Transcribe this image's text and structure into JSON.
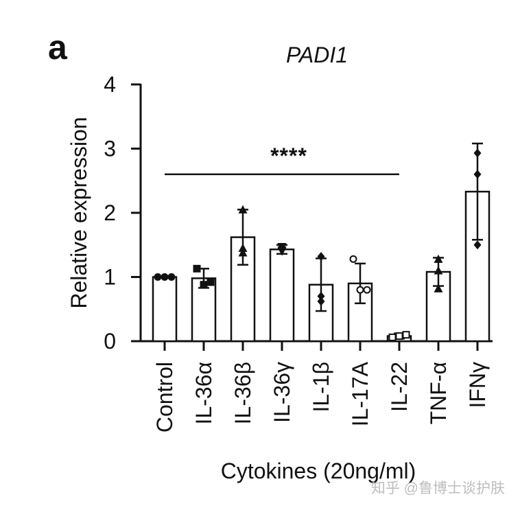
{
  "panel_label": "a",
  "watermark": "知乎 @鲁博士谈护肤",
  "colors": {
    "ink": "#111111",
    "bar_fill": "#ffffff",
    "watermark": "#bdbdbd"
  },
  "chart_data": {
    "type": "bar",
    "title": "PADI1",
    "xlabel": "Cytokines (20ng/ml)",
    "ylabel": "Relative expression",
    "ylim": [
      0,
      4
    ],
    "yticks": [
      0,
      1,
      2,
      3,
      4
    ],
    "categories": [
      "Control",
      "IL-36α",
      "IL-36β",
      "IL-36γ",
      "IL-1β",
      "IL-17A",
      "IL-22",
      "TNF-α",
      "IFNγ"
    ],
    "values": [
      1.0,
      0.98,
      1.62,
      1.43,
      0.88,
      0.9,
      0.08,
      1.08,
      2.33
    ],
    "error": [
      0.0,
      0.15,
      0.43,
      0.07,
      0.41,
      0.31,
      0.04,
      0.22,
      0.75
    ],
    "points": [
      [
        1.0,
        1.0,
        1.0
      ],
      [
        1.13,
        0.88,
        0.92
      ],
      [
        2.05,
        1.38,
        1.45
      ],
      [
        1.47,
        1.4,
        1.42
      ],
      [
        1.32,
        0.7,
        0.62
      ],
      [
        1.28,
        0.8,
        0.8
      ],
      [
        0.06,
        0.08,
        0.1
      ],
      [
        1.28,
        1.1,
        0.82
      ],
      [
        2.93,
        2.6,
        1.5
      ]
    ],
    "markers": [
      "circle",
      "square",
      "triangle",
      "triangle-down",
      "diamond",
      "circle-open",
      "square-open",
      "triangle",
      "diamond"
    ],
    "grid": false,
    "legend": "none",
    "annotations": [
      {
        "text": "****",
        "from": "Control",
        "to": "IL-22",
        "y": 2.6
      }
    ]
  }
}
